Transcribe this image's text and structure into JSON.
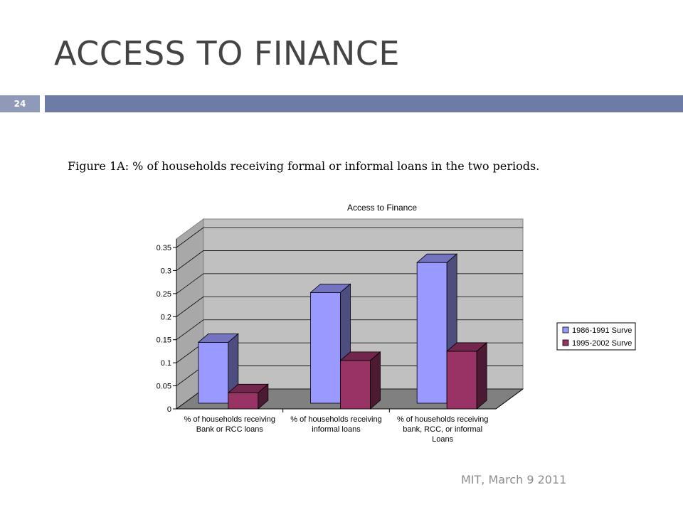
{
  "slide": {
    "title": "ACCESS TO FINANCE",
    "page_number": "24",
    "figure_caption": "Figure 1A: % of households receiving formal or informal loans in the two periods.",
    "footer": "MIT, March 9 2011"
  },
  "colors": {
    "header_bar": "#6e7ba5",
    "page_box": "#8f9ab8",
    "plot_back": "#c0c0c0",
    "floor": "#808080",
    "series1": "#9999ff",
    "series2": "#993366"
  },
  "chart_data": {
    "type": "bar",
    "title": "Access to Finance",
    "categories": [
      [
        "% of households receiving",
        "Bank or RCC loans"
      ],
      [
        "% of households receiving",
        "informal loans"
      ],
      [
        "% of households receiving",
        "bank, RCC, or informal",
        "Loans"
      ]
    ],
    "series": [
      {
        "name": "1986-1991 Surve",
        "values": [
          0.132,
          0.24,
          0.305
        ],
        "color": "#9999ff"
      },
      {
        "name": "1995-2002 Surve",
        "values": [
          0.035,
          0.105,
          0.125
        ],
        "color": "#993366"
      }
    ],
    "ylim": [
      0,
      0.35
    ],
    "yticks": [
      "0",
      "0.05",
      "0.1",
      "0.15",
      "0.2",
      "0.25",
      "0.3",
      "0.35"
    ],
    "grid": true,
    "three_d": true,
    "legend_position": "right"
  }
}
